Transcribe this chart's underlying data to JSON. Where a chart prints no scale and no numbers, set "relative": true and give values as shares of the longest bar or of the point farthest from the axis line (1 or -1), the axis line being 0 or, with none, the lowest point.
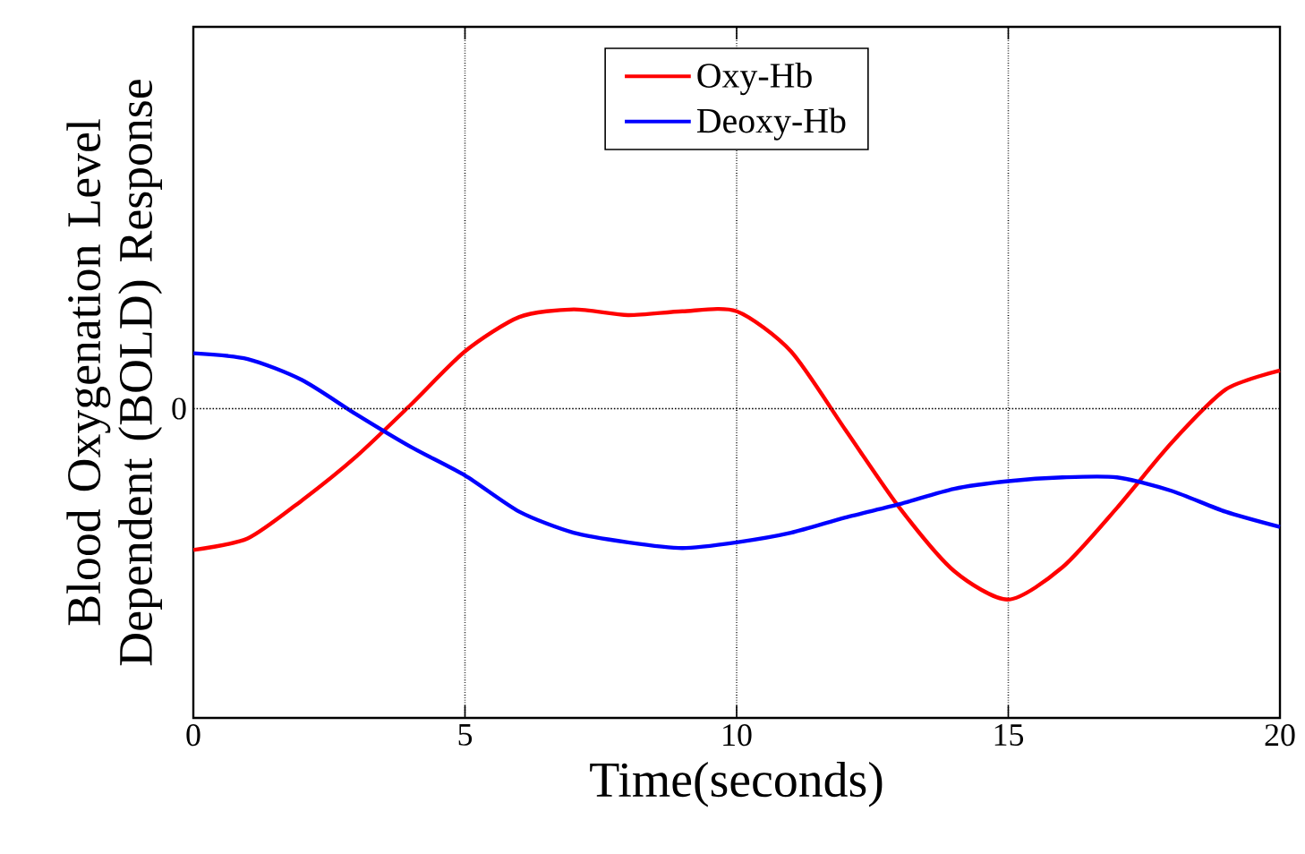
{
  "chart_data": {
    "type": "line",
    "xlabel": "Time(seconds)",
    "ylabel": "Blood Oxygenation Level Dependent (BOLD) Response",
    "relative": true,
    "x": [
      0,
      1,
      2,
      3,
      4,
      5,
      6,
      7,
      8,
      9,
      10,
      11,
      12,
      13,
      14,
      15,
      16,
      17,
      18,
      19,
      20
    ],
    "xlim": [
      0,
      20
    ],
    "xticks": [
      0,
      5,
      10,
      15,
      20
    ],
    "grid": "x",
    "legend": "top",
    "line_style": "solid",
    "marker": "none",
    "ref_lines": [
      {
        "axis": "y",
        "value": 0,
        "label": "0",
        "line_style": "dotted",
        "color": "#000000"
      }
    ],
    "series": [
      {
        "name": "Oxy-Hb",
        "color": "#ff0000",
        "values": [
          -0.74,
          -0.68,
          -0.48,
          -0.25,
          0.02,
          0.3,
          0.48,
          0.52,
          0.49,
          0.51,
          0.51,
          0.3,
          -0.11,
          -0.52,
          -0.85,
          -1,
          -0.83,
          -0.52,
          -0.18,
          0.1,
          0.2
        ]
      },
      {
        "name": "Deoxy-Hb",
        "color": "#0000ff",
        "values": [
          0.29,
          0.26,
          0.15,
          -0.03,
          -0.2,
          -0.35,
          -0.54,
          -0.65,
          -0.7,
          -0.73,
          -0.7,
          -0.65,
          -0.57,
          -0.5,
          -0.42,
          -0.38,
          -0.36,
          -0.36,
          -0.43,
          -0.54,
          -0.62
        ]
      }
    ]
  }
}
